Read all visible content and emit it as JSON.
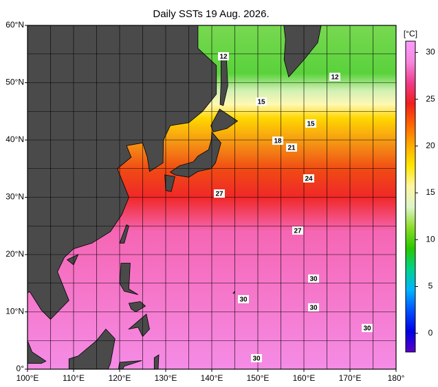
{
  "title": "Daily SSTs 19 Aug. 2026.",
  "lon_ticks": [
    {
      "value": 100,
      "label": "100°E"
    },
    {
      "value": 110,
      "label": "110°E"
    },
    {
      "value": 120,
      "label": "120°E"
    },
    {
      "value": 130,
      "label": "130°E"
    },
    {
      "value": 140,
      "label": "140°E"
    },
    {
      "value": 150,
      "label": "150°E"
    },
    {
      "value": 160,
      "label": "160°E"
    },
    {
      "value": 170,
      "label": "170°E"
    },
    {
      "value": 180,
      "label": "180°"
    }
  ],
  "lat_ticks": [
    {
      "value": 0,
      "label": "0°"
    },
    {
      "value": 10,
      "label": "10°N"
    },
    {
      "value": 20,
      "label": "20°N"
    },
    {
      "value": 30,
      "label": "30°N"
    },
    {
      "value": 40,
      "label": "40°N"
    },
    {
      "value": 50,
      "label": "50°N"
    },
    {
      "value": 60,
      "label": "60°N"
    }
  ],
  "colorbar": {
    "unit": "[°C]",
    "range": [
      -2,
      31.2
    ],
    "ticks": [
      0,
      5,
      10,
      15,
      20,
      25,
      30
    ],
    "colors": [
      "#5a00c8",
      "#0000e6",
      "#0050ff",
      "#00b4ff",
      "#00d28c",
      "#28c800",
      "#8cdc28",
      "#dcf5c8",
      "#fff5a0",
      "#ffe600",
      "#ffaa00",
      "#ff6400",
      "#f01e1e",
      "#f03c8c",
      "#f587dc",
      "#ff9bff"
    ]
  },
  "contour_labels": [
    12,
    12,
    15,
    15,
    18,
    21,
    24,
    27,
    27,
    30,
    30,
    30,
    30,
    30
  ]
}
